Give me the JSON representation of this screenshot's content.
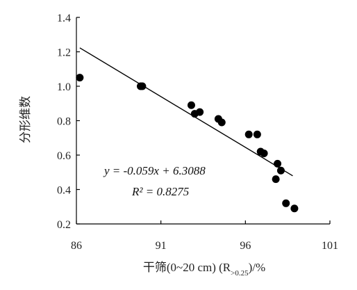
{
  "chart_data": {
    "type": "scatter",
    "xlabel": "干筛(0~20 cm) (R>0.25)/%",
    "ylabel": "分形维数",
    "xlim": [
      86,
      101
    ],
    "ylim": [
      0.2,
      1.4
    ],
    "x_ticks": [
      "86",
      "91",
      "96",
      "101"
    ],
    "y_ticks": [
      "0.2",
      "0.4",
      "0.6",
      "0.8",
      "1.0",
      "1.2",
      "1.4"
    ],
    "grid": false,
    "points": [
      {
        "x": 86.2,
        "y": 1.05
      },
      {
        "x": 89.8,
        "y": 1.0
      },
      {
        "x": 89.9,
        "y": 1.0
      },
      {
        "x": 92.8,
        "y": 0.89
      },
      {
        "x": 93.0,
        "y": 0.84
      },
      {
        "x": 93.3,
        "y": 0.85
      },
      {
        "x": 94.4,
        "y": 0.81
      },
      {
        "x": 94.6,
        "y": 0.79
      },
      {
        "x": 96.2,
        "y": 0.72
      },
      {
        "x": 96.7,
        "y": 0.72
      },
      {
        "x": 96.9,
        "y": 0.62
      },
      {
        "x": 97.1,
        "y": 0.61
      },
      {
        "x": 97.9,
        "y": 0.55
      },
      {
        "x": 98.1,
        "y": 0.51
      },
      {
        "x": 97.8,
        "y": 0.46
      },
      {
        "x": 98.4,
        "y": 0.32
      },
      {
        "x": 98.9,
        "y": 0.29
      }
    ],
    "trendline": {
      "slope": -0.059,
      "intercept": 6.3088,
      "x_range": [
        86.2,
        98.8
      ],
      "equation_text": "y = -0.059x + 6.3088",
      "r2_text": "R² = 0.8275"
    },
    "marker_color": "#000000",
    "line_color": "#000000"
  }
}
